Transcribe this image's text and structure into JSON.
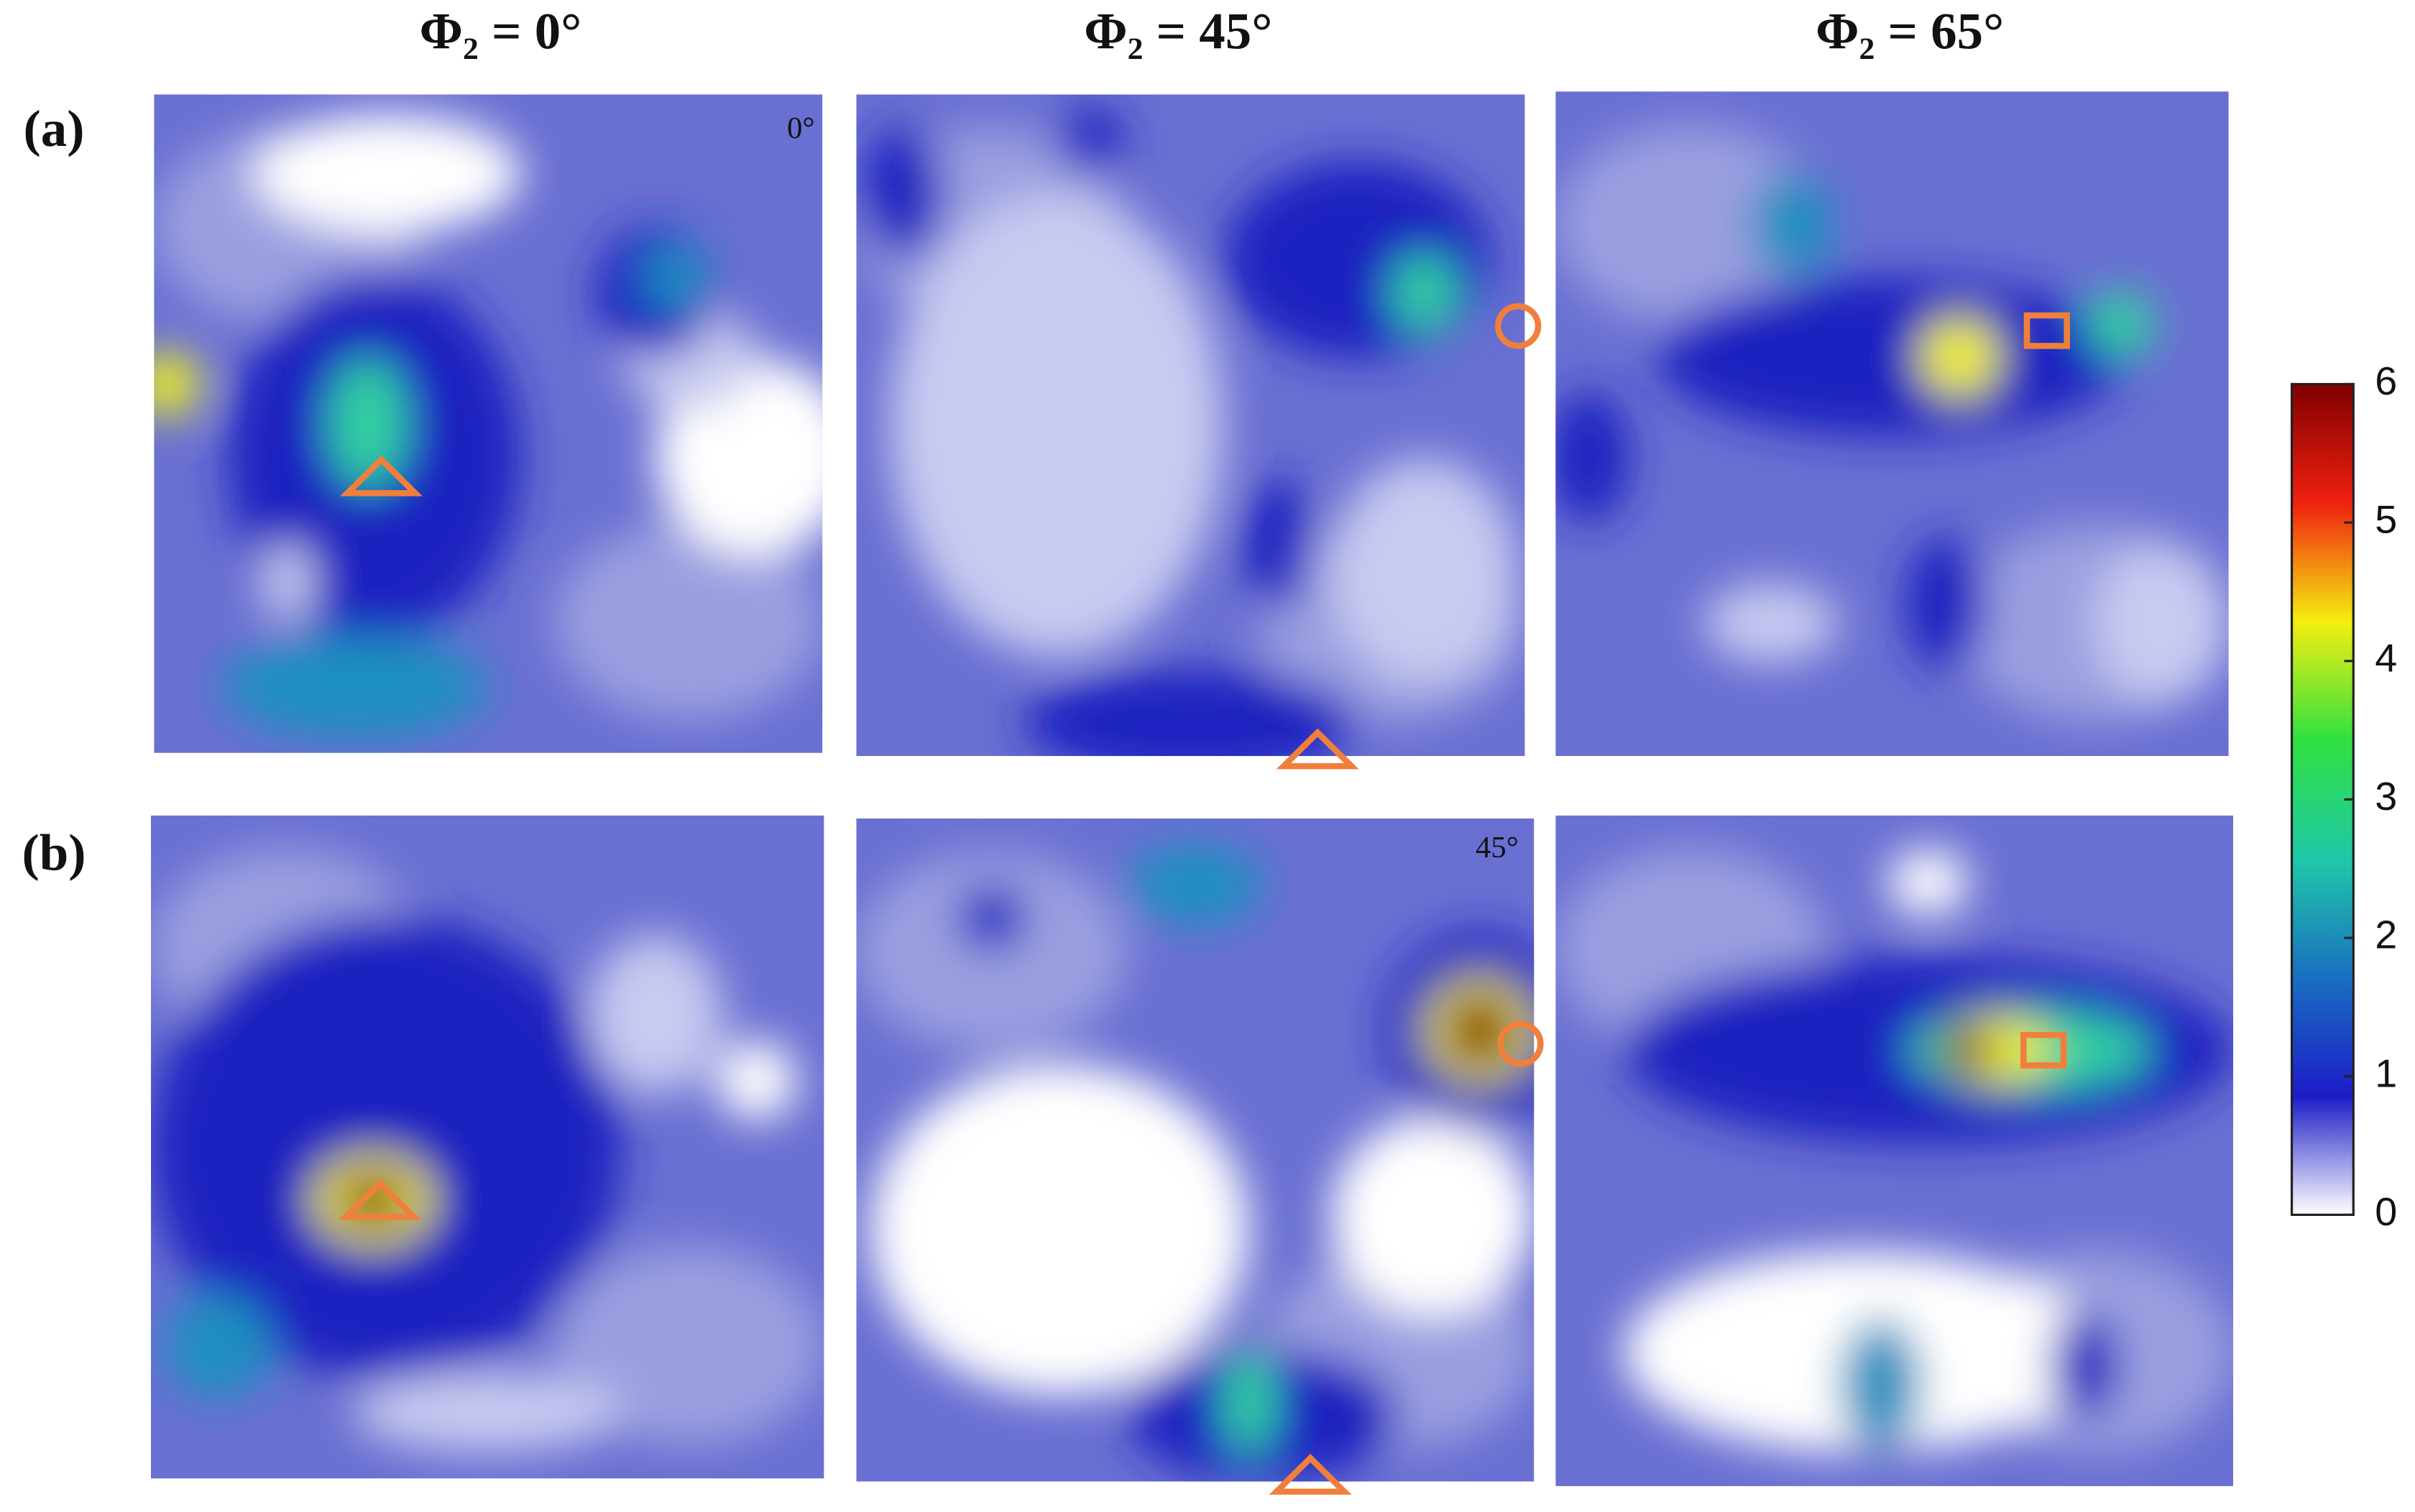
{
  "chart_data": {
    "type": "heatmap",
    "column_titles": [
      "Φ₂ = 0°",
      "Φ₂ = 45°",
      "Φ₂ = 65°"
    ],
    "row_labels": [
      "(a)",
      "(b)"
    ],
    "panel_labels": [
      "0°",
      "45°"
    ],
    "colorbar": {
      "clim": [
        0,
        6
      ],
      "ticks": [
        0,
        1,
        2,
        3,
        4,
        5,
        6
      ],
      "colors": [
        "#ffffff",
        "#1c1cc8",
        "#1a6fc0",
        "#20c8a8",
        "#30e040",
        "#f5ee10",
        "#f02010",
        "#800000"
      ]
    },
    "marker_color": "#f07f3c"
  }
}
